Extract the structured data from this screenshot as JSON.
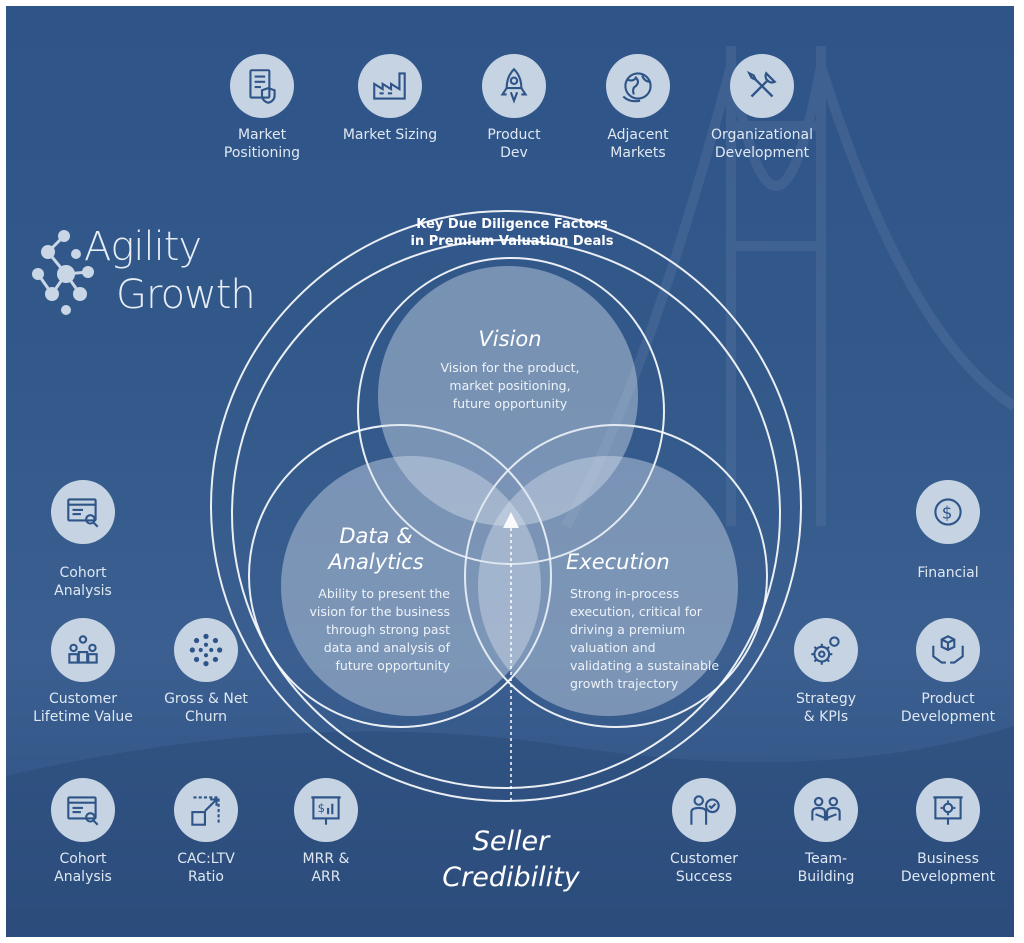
{
  "colors": {
    "background": "#33598b",
    "icon_circle": "#c5d3e3",
    "icon_stroke": "#2f5488",
    "venn_fill": "#d8e2ee"
  },
  "brand": {
    "line1": "Agility",
    "line2": "Growth"
  },
  "venn": {
    "title": "Key Due Diligence Factors\nin Premium Valuation Deals",
    "vision": {
      "title": "Vision",
      "text": "Vision for the product,\nmarket positioning,\nfuture opportunity"
    },
    "data": {
      "title": "Data &\nAnalytics",
      "text": "Ability to present the\nvision for the business\nthrough strong past\ndata and analysis of\nfuture opportunity"
    },
    "execution": {
      "title": "Execution",
      "text": "Strong in-process\nexecution, critical for\ndriving a premium\nvaluation and\nvalidating a sustainable\ngrowth trajectory"
    },
    "seller": "Seller\nCredibility"
  },
  "top_icons": [
    {
      "icon": "document-shield-icon",
      "label": "Market\nPositioning"
    },
    {
      "icon": "factory-icon",
      "label": "Market Sizing"
    },
    {
      "icon": "rocket-icon",
      "label": "Product\nDev"
    },
    {
      "icon": "globe-icon",
      "label": "Adjacent\nMarkets"
    },
    {
      "icon": "wrench-screwdriver-icon",
      "label": "Organizational\nDevelopment"
    }
  ],
  "left_icons": [
    {
      "icon": "analysis-window-icon",
      "label": "Cohort\nAnalysis"
    },
    {
      "icon": "people-group-icon",
      "label": "Customer\nLifetime Value"
    },
    {
      "icon": "dots-circle-icon",
      "label": "Gross & Net\nChurn"
    },
    {
      "icon": "analysis-window-icon",
      "label": "Cohort\nAnalysis"
    },
    {
      "icon": "resize-ratio-icon",
      "label": "CAC:LTV\nRatio"
    },
    {
      "icon": "presentation-dollar-icon",
      "label": "MRR &\nARR"
    }
  ],
  "right_icons": [
    {
      "icon": "dollar-coin-icon",
      "label": "Financial"
    },
    {
      "icon": "gears-icon",
      "label": "Strategy\n& KPIs"
    },
    {
      "icon": "box-hands-icon",
      "label": "Product\nDevelopment"
    },
    {
      "icon": "customer-check-icon",
      "label": "Customer\nSuccess"
    },
    {
      "icon": "team-icon",
      "label": "Team-\nBuilding"
    },
    {
      "icon": "presentation-gear-icon",
      "label": "Business\nDevelopment"
    }
  ]
}
